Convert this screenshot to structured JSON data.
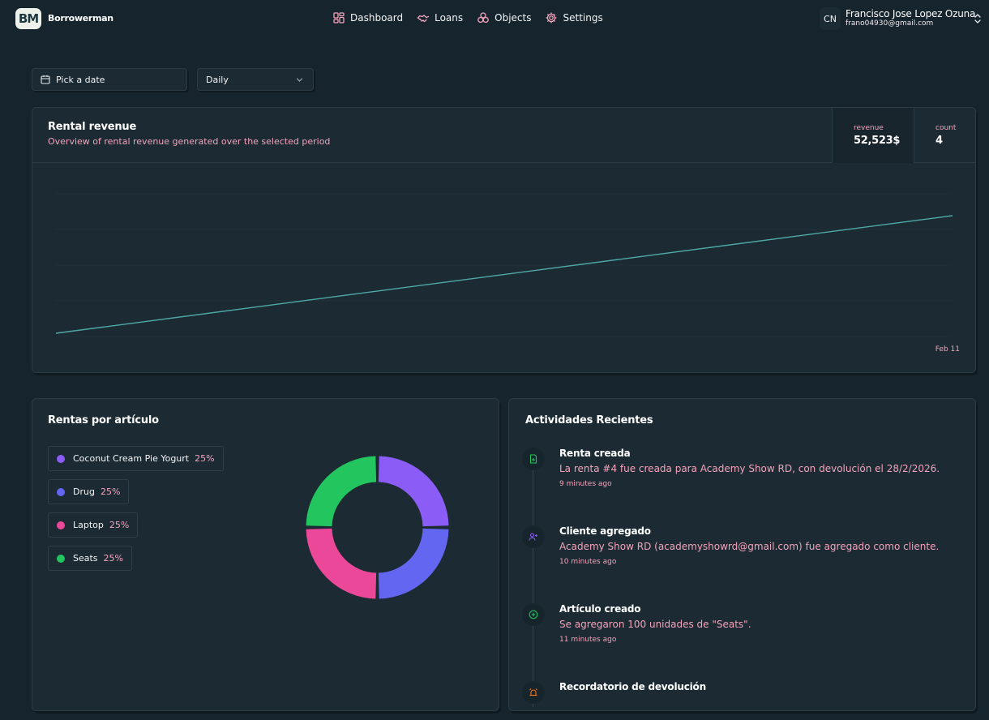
{
  "app": {
    "logo_text": "BM",
    "brand": "Borrowerman"
  },
  "nav": [
    {
      "label": "Dashboard",
      "icon": "dashboard-icon"
    },
    {
      "label": "Loans",
      "icon": "handshake-icon"
    },
    {
      "label": "Objects",
      "icon": "boxes-icon"
    },
    {
      "label": "Settings",
      "icon": "gear-icon"
    }
  ],
  "user": {
    "initials": "CN",
    "name": "Francisco Jose Lopez Ozuna",
    "email": "frano04930@gmail.com"
  },
  "filters": {
    "date_label": "Pick a date",
    "period_value": "Daily"
  },
  "revenue": {
    "title": "Rental revenue",
    "subtitle": "Overview of rental revenue generated over the selected period",
    "stats": [
      {
        "label": "revenue",
        "value": "52,523$"
      },
      {
        "label": "count",
        "value": "4"
      }
    ]
  },
  "chart_data": [
    {
      "type": "line",
      "x_tick_labels": [
        "Feb 11"
      ],
      "series": [
        {
          "values": [
            1,
            2
          ]
        }
      ],
      "grid": true,
      "color": "#4fa8a8"
    },
    {
      "type": "pie",
      "title": "Rentas por artículo",
      "categories": [
        "Coconut Cream Pie Yogurt",
        "Drug",
        "Laptop",
        "Seats"
      ],
      "values": [
        25,
        25,
        25,
        25
      ],
      "colors": [
        "#8b5cf6",
        "#6366f1",
        "#ec4899",
        "#22c55e"
      ]
    }
  ],
  "items_card": {
    "title": "Rentas por artículo",
    "legend": [
      {
        "label": "Coconut Cream Pie Yogurt",
        "pct": "25%",
        "color": "#8b5cf6"
      },
      {
        "label": "Drug",
        "pct": "25%",
        "color": "#6366f1"
      },
      {
        "label": "Laptop",
        "pct": "25%",
        "color": "#ec4899"
      },
      {
        "label": "Seats",
        "pct": "25%",
        "color": "#22c55e"
      }
    ]
  },
  "activity": {
    "title": "Actividades Recientes",
    "items": [
      {
        "icon": "file-plus-icon",
        "title": "Renta creada",
        "desc": "La renta #4 fue creada para Academy Show RD, con devolución el 28/2/2026.",
        "time": "9 minutes ago",
        "color": "#22c55e"
      },
      {
        "icon": "user-plus-icon",
        "title": "Cliente agregado",
        "desc": "Academy Show RD (academyshowrd@gmail.com) fue agregado como cliente.",
        "time": "10 minutes ago",
        "color": "#8b5cf6"
      },
      {
        "icon": "circle-plus-icon",
        "title": "Artículo creado",
        "desc": "Se agregaron 100 unidades de \"Seats\".",
        "time": "11 minutes ago",
        "color": "#22c55e"
      },
      {
        "icon": "alarm-icon",
        "title": "Recordatorio de devolución",
        "desc": "",
        "time": "",
        "color": "#f97316"
      }
    ]
  }
}
